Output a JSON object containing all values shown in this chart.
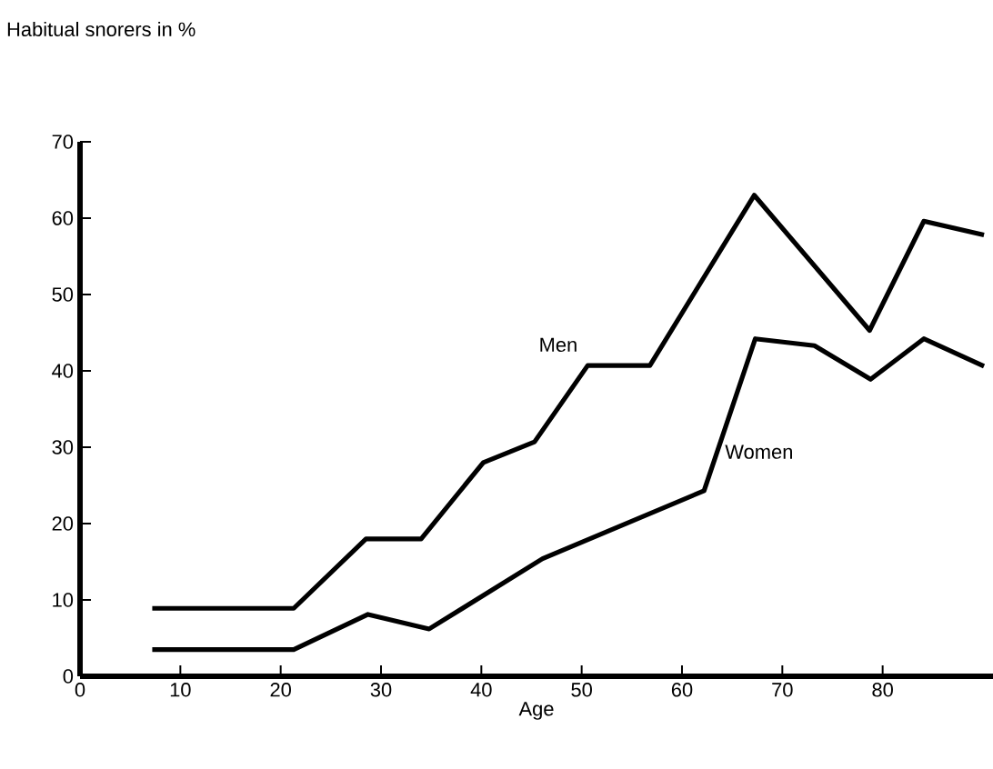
{
  "chart_data": {
    "type": "line",
    "ylabel": "Habitual snorers in %",
    "xlabel": "Age",
    "xlim": [
      0,
      91
    ],
    "ylim": [
      0,
      70
    ],
    "xticks": [
      0,
      10,
      20,
      30,
      40,
      50,
      60,
      70,
      80
    ],
    "yticks": [
      0,
      10,
      20,
      30,
      40,
      50,
      60,
      70
    ],
    "grid": false,
    "legend": false,
    "marker": "none",
    "line_style": "solid",
    "series": [
      {
        "name": "Men",
        "color": "#000000",
        "x": [
          7.2,
          21.3,
          28.5,
          34.0,
          40.2,
          45.3,
          50.6,
          56.8,
          67.2,
          78.7,
          84.1,
          90.1
        ],
        "values": [
          8.9,
          8.9,
          18.0,
          18.0,
          28.0,
          30.7,
          40.7,
          40.7,
          63.0,
          45.3,
          59.6,
          57.8
        ]
      },
      {
        "name": "Women",
        "color": "#000000",
        "x": [
          7.2,
          21.3,
          28.7,
          34.8,
          46.1,
          62.2,
          67.3,
          73.2,
          78.8,
          84.1,
          90.1
        ],
        "values": [
          3.5,
          3.5,
          8.1,
          6.2,
          15.4,
          24.3,
          44.2,
          43.3,
          38.9,
          44.2,
          40.6
        ]
      }
    ]
  }
}
